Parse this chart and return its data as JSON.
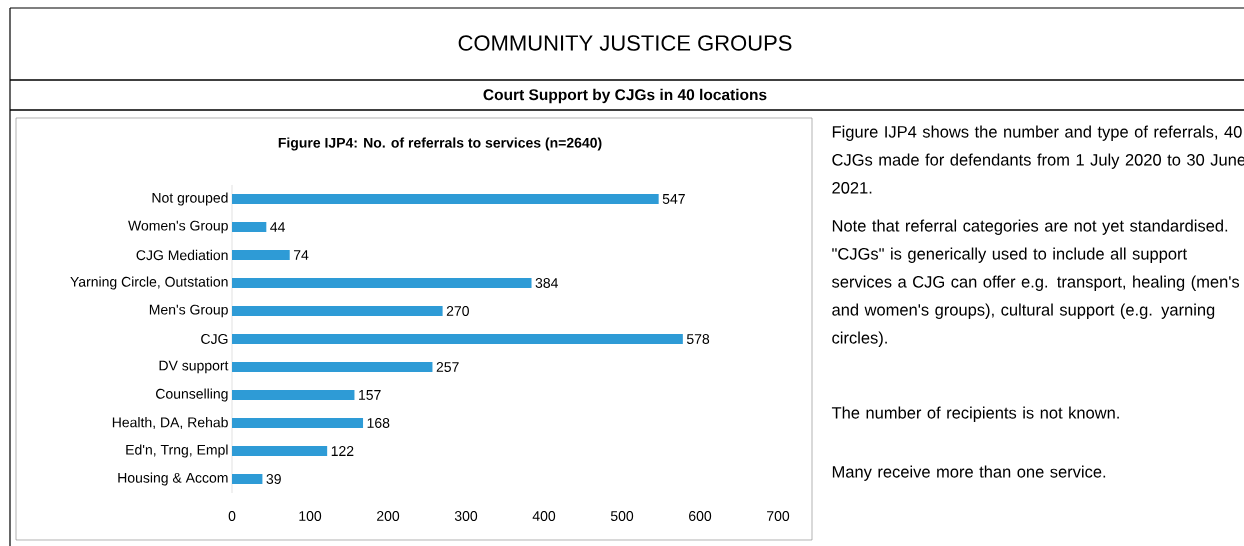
{
  "chart_data": {
    "type": "bar",
    "orientation": "horizontal",
    "title": "Figure IJP4: No. of referrals to services (n=2640)",
    "categories": [
      "Not grouped",
      "Women's Group",
      "CJG Mediation",
      "Yarning Circle, Outstation",
      "Men's Group",
      "CJG",
      "DV support",
      "Counselling",
      "Health, DA, Rehab",
      "Ed'n, Trng, Empl",
      "Housing & Accom"
    ],
    "values": [
      547,
      44,
      74,
      384,
      270,
      578,
      257,
      157,
      168,
      122,
      39
    ],
    "color": "#2e9bd6",
    "data_labels": true,
    "xlim": [
      0,
      700
    ],
    "xticks": [
      0,
      100,
      200,
      300,
      400,
      500,
      600,
      700
    ],
    "annotations": [
      "COMMUNITY JUSTICE GROUPS",
      "Court Support by CJGs in 40 locations",
      "Figure IJP4 shows the number and type of referrals, 40 CJGs made for defendants from 1 July 2020 to 30 June 2021.",
      "Note that referral categories are not yet standardised.  \"CJGs\" is generically used to include all support services a CJG can offer e.g. transport, healing (men's and women's groups), cultural support (e.g. yarning circles).",
      "The number of recipients is not known.",
      "Many receive more than one service."
    ]
  }
}
